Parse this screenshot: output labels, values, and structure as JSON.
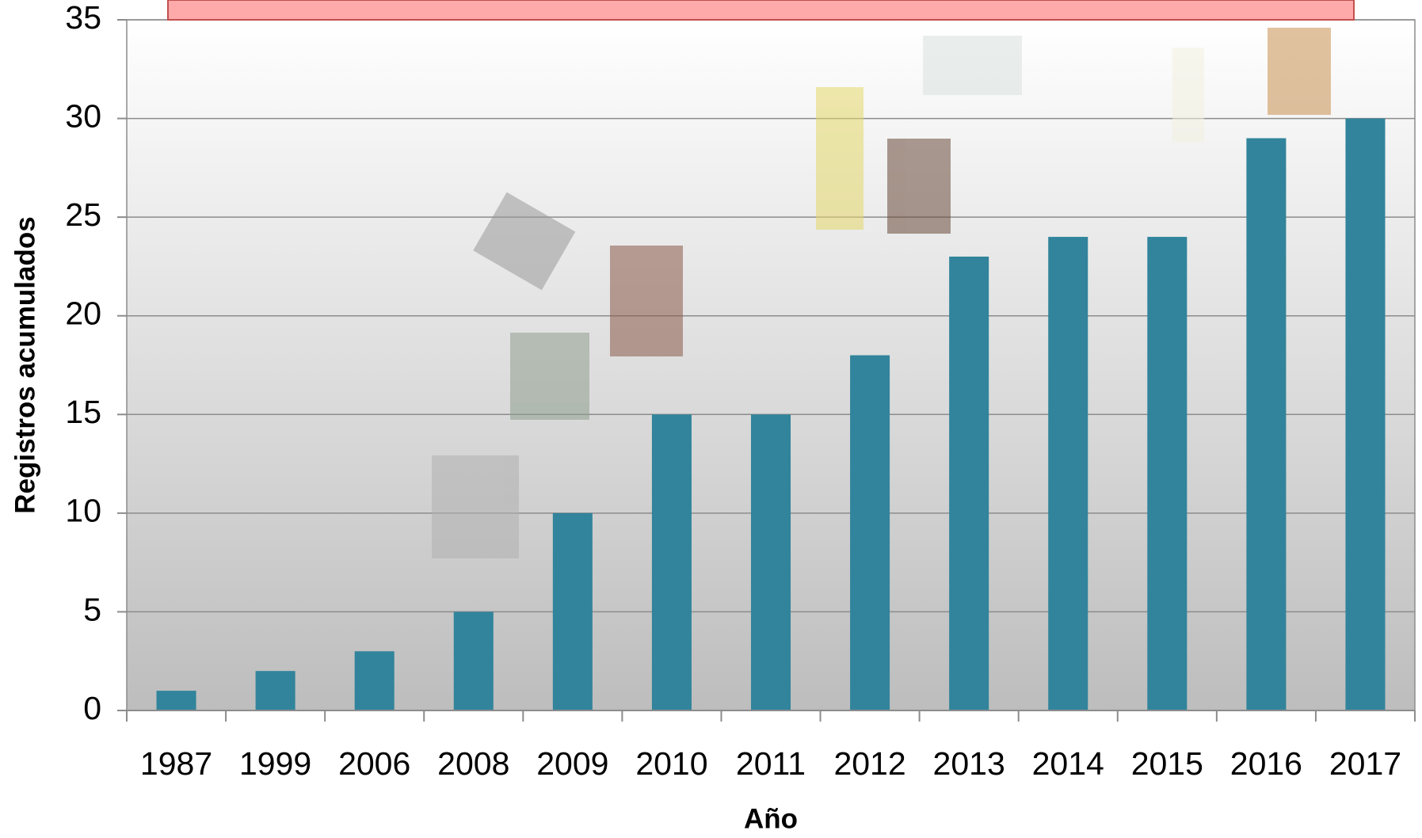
{
  "chart_data": {
    "type": "bar",
    "categories": [
      "1987",
      "1999",
      "2006",
      "2008",
      "2009",
      "2010",
      "2011",
      "2012",
      "2013",
      "2014",
      "2015",
      "2016",
      "2017"
    ],
    "values": [
      1,
      2,
      3,
      5,
      10,
      15,
      15,
      18,
      23,
      24,
      24,
      29,
      30
    ],
    "color": "#31849b",
    "x_label": "Año",
    "y_label": "Registros acumulados",
    "ylim": [
      0,
      35
    ],
    "yticks": [
      0,
      5,
      10,
      15,
      20,
      25,
      30,
      35
    ],
    "grid": true
  }
}
